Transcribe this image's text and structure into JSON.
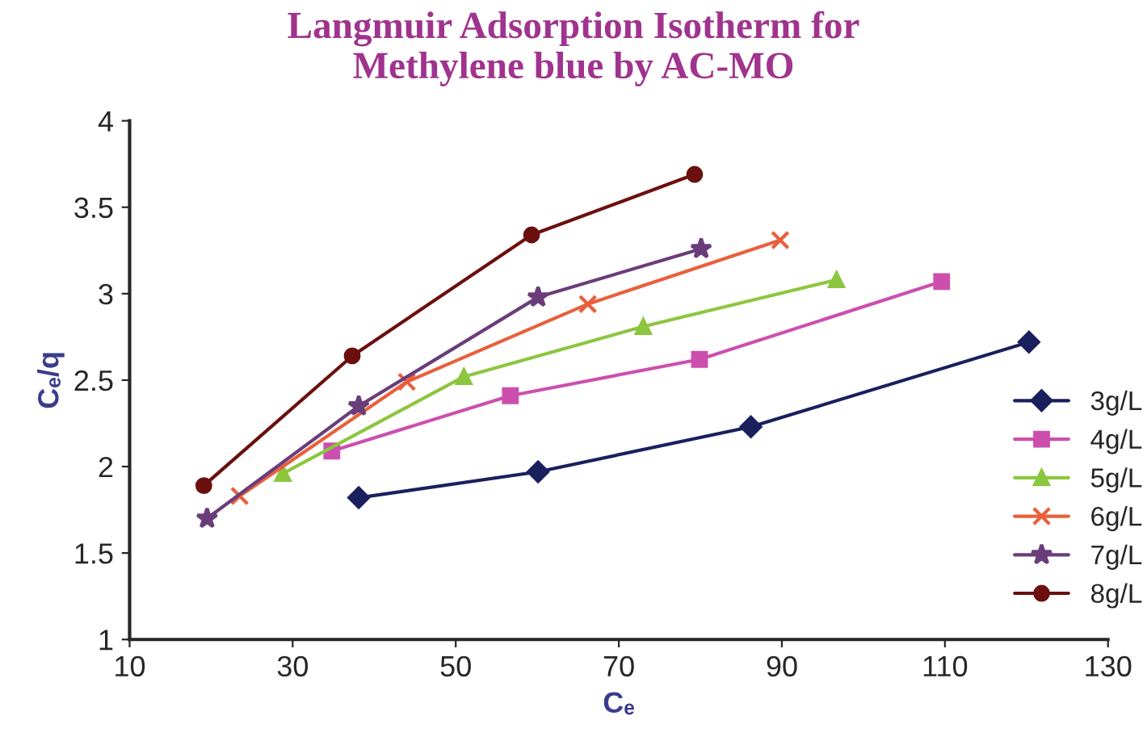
{
  "chart_data": {
    "type": "line",
    "title": "Langmuir Adsorption Isotherm for\nMethylene blue by AC-MO",
    "xlabel": "Cₑ",
    "ylabel": "Cₑ/q",
    "xlim": [
      10,
      130
    ],
    "xticks": [
      10,
      30,
      50,
      70,
      90,
      110,
      130
    ],
    "ylim": [
      1,
      4
    ],
    "yticks": [
      1,
      1.5,
      2,
      2.5,
      3,
      3.5,
      4
    ],
    "grid": false,
    "legend": "right",
    "series": [
      {
        "name": "3g/L",
        "color": "#1a1f5e",
        "marker": "diamond",
        "x": [
          38.1,
          60.1,
          86.2,
          120.3
        ],
        "values": [
          1.82,
          1.97,
          2.23,
          2.72
        ]
      },
      {
        "name": "4g/L",
        "color": "#cc4fae",
        "marker": "square",
        "x": [
          34.8,
          56.7,
          79.9,
          109.6
        ],
        "values": [
          2.09,
          2.41,
          2.62,
          3.07
        ]
      },
      {
        "name": "5g/L",
        "color": "#8cc63f",
        "marker": "triangle",
        "x": [
          28.8,
          51,
          73,
          96.7
        ],
        "values": [
          1.96,
          2.52,
          2.81,
          3.08
        ]
      },
      {
        "name": "6g/L",
        "color": "#e8603c",
        "marker": "cross",
        "x": [
          23.5,
          44,
          66.2,
          89.8
        ],
        "values": [
          1.83,
          2.49,
          2.94,
          3.31
        ]
      },
      {
        "name": "7g/L",
        "color": "#6a3d7a",
        "marker": "star",
        "x": [
          19.5,
          38.1,
          60.1,
          80.1
        ],
        "values": [
          1.7,
          2.35,
          2.98,
          3.26
        ]
      },
      {
        "name": "8g/L",
        "color": "#6b0f0f",
        "marker": "circle",
        "x": [
          19.1,
          37.3,
          59.3,
          79.3
        ],
        "values": [
          1.89,
          2.64,
          3.34,
          3.69
        ]
      }
    ]
  }
}
